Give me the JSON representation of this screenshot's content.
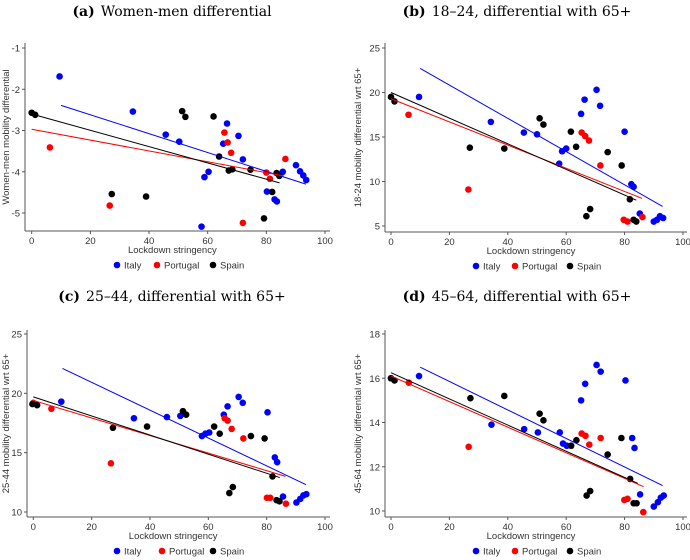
{
  "chart_data": [
    {
      "type": "scatter",
      "label": "(a)",
      "title": "Women-men differential",
      "xlabel": "Lockdown stringency",
      "ylabel": "Women-men mobility differential",
      "xlim": [
        0,
        100
      ],
      "xticks": [
        0,
        20,
        40,
        60,
        80,
        100
      ],
      "ylim": [
        -5,
        -1
      ],
      "yticks": [
        -5,
        -4,
        -3,
        -2,
        -1
      ],
      "legend_position": "bottom",
      "series": [
        {
          "name": "Italy",
          "color": "#0000ff",
          "points": [
            [
              9.5,
              -1.69
            ],
            [
              34.5,
              -2.54
            ],
            [
              45.7,
              -3.1
            ],
            [
              50.3,
              -3.27
            ],
            [
              57.9,
              -5.33
            ],
            [
              58.9,
              -4.13
            ],
            [
              60.3,
              -4.0
            ],
            [
              65.3,
              -3.32
            ],
            [
              66.6,
              -2.83
            ],
            [
              70.5,
              -3.13
            ],
            [
              72,
              -3.7
            ],
            [
              80.2,
              -4.48
            ],
            [
              82.8,
              -4.67
            ],
            [
              83.6,
              -4.72
            ],
            [
              85.6,
              -4.0
            ],
            [
              90.1,
              -3.84
            ],
            [
              91.5,
              -3.99
            ],
            [
              92.6,
              -4.09
            ],
            [
              93.6,
              -4.2
            ]
          ],
          "fit": [
            [
              10,
              -2.39
            ],
            [
              93.5,
              -4.3
            ]
          ]
        },
        {
          "name": "Portugal",
          "color": "#ff0000",
          "points": [
            [
              6.2,
              -3.41
            ],
            [
              26.6,
              -4.82
            ],
            [
              65.7,
              -3.05
            ],
            [
              66.8,
              -3.29
            ],
            [
              68,
              -3.54
            ],
            [
              72,
              -5.24
            ],
            [
              80,
              -4.02
            ],
            [
              81.2,
              -4.17
            ],
            [
              86.5,
              -3.69
            ]
          ],
          "fit": [
            [
              0,
              -2.97
            ],
            [
              86,
              -4.1
            ]
          ]
        },
        {
          "name": "Spain",
          "color": "#000000",
          "points": [
            [
              0,
              -2.57
            ],
            [
              1.2,
              -2.62
            ],
            [
              27.3,
              -4.54
            ],
            [
              39,
              -4.6
            ],
            [
              51.3,
              -2.53
            ],
            [
              52.4,
              -2.67
            ],
            [
              62,
              -2.66
            ],
            [
              63.9,
              -3.63
            ],
            [
              67.2,
              -3.97
            ],
            [
              68.4,
              -3.94
            ],
            [
              74.6,
              -3.95
            ],
            [
              79.2,
              -5.13
            ],
            [
              82,
              -4.49
            ],
            [
              83.5,
              -4.03
            ],
            [
              84.4,
              -4.1
            ]
          ],
          "fit": [
            [
              0,
              -2.6
            ],
            [
              84.5,
              -4.27
            ]
          ]
        }
      ]
    },
    {
      "type": "scatter",
      "label": "(b)",
      "title": "18–24, differential with 65+",
      "xlabel": "Lockdown stringency",
      "ylabel": "18-24 mobility differential wrt 65+",
      "xlim": [
        0,
        100
      ],
      "xticks": [
        0,
        20,
        40,
        60,
        80,
        100
      ],
      "ylim": [
        5,
        25
      ],
      "yticks": [
        5,
        10,
        15,
        20,
        25
      ],
      "legend_position": "bottom",
      "series": [
        {
          "name": "Italy",
          "color": "#0000ff",
          "points": [
            [
              9.6,
              19.5
            ],
            [
              34.2,
              16.7
            ],
            [
              45.5,
              15.5
            ],
            [
              50,
              15.3
            ],
            [
              57.6,
              12.0
            ],
            [
              58.6,
              13.4
            ],
            [
              60,
              13.7
            ],
            [
              65.1,
              17.6
            ],
            [
              66.3,
              19.2
            ],
            [
              70.4,
              20.3
            ],
            [
              71.6,
              18.5
            ],
            [
              80,
              15.6
            ],
            [
              82.3,
              9.7
            ],
            [
              83.1,
              9.4
            ],
            [
              85.2,
              6.4
            ],
            [
              90,
              5.5
            ],
            [
              91.1,
              5.7
            ],
            [
              92.1,
              6.1
            ],
            [
              93.2,
              5.9
            ]
          ],
          "fit": [
            [
              10,
              22.7
            ],
            [
              93,
              7.2
            ]
          ]
        },
        {
          "name": "Portugal",
          "color": "#ff0000",
          "points": [
            [
              6,
              17.5
            ],
            [
              26.5,
              9.1
            ],
            [
              65.3,
              15.5
            ],
            [
              66.5,
              15.1
            ],
            [
              67.8,
              14.6
            ],
            [
              71.7,
              11.8
            ],
            [
              79.7,
              5.7
            ],
            [
              81,
              5.5
            ],
            [
              86.1,
              6.0
            ]
          ],
          "fit": [
            [
              0,
              19.3
            ],
            [
              86,
              8.1
            ]
          ]
        },
        {
          "name": "Spain",
          "color": "#000000",
          "points": [
            [
              0,
              19.5
            ],
            [
              1.2,
              19
            ],
            [
              27,
              13.8
            ],
            [
              38.8,
              13.7
            ],
            [
              50.9,
              17.1
            ],
            [
              52.2,
              16.4
            ],
            [
              61.6,
              15.6
            ],
            [
              63.4,
              13.9
            ],
            [
              66.9,
              6.1
            ],
            [
              68.2,
              6.9
            ],
            [
              74.2,
              13.3
            ],
            [
              79,
              11.8
            ],
            [
              81.8,
              8.0
            ],
            [
              83.1,
              5.7
            ],
            [
              84,
              5.5
            ]
          ],
          "fit": [
            [
              0,
              20.0
            ],
            [
              84,
              7.9
            ]
          ]
        }
      ]
    },
    {
      "type": "scatter",
      "label": "(c)",
      "title": "25–44, differential with 65+",
      "xlabel": "Lockdown stringency",
      "ylabel": "25-44 mobility differential wrt 65+",
      "xlim": [
        0,
        100
      ],
      "xticks": [
        0,
        20,
        40,
        60,
        80,
        100
      ],
      "ylim": [
        10,
        25
      ],
      "yticks": [
        10,
        15,
        20,
        25
      ],
      "legend_position": "bottom",
      "series": [
        {
          "name": "Italy",
          "color": "#0000ff",
          "points": [
            [
              9.6,
              19.3
            ],
            [
              34.5,
              17.9
            ],
            [
              45.8,
              18.0
            ],
            [
              50.4,
              18.1
            ],
            [
              57.8,
              16.4
            ],
            [
              59,
              16.6
            ],
            [
              60.3,
              16.7
            ],
            [
              65.3,
              18.2
            ],
            [
              66.6,
              18.9
            ],
            [
              70.4,
              19.7
            ],
            [
              71.8,
              19.2
            ],
            [
              80.3,
              18.4
            ],
            [
              82.8,
              14.6
            ],
            [
              83.6,
              14.2
            ],
            [
              85.6,
              11.3
            ],
            [
              90.2,
              10.8
            ],
            [
              91.5,
              11.1
            ],
            [
              92.6,
              11.4
            ],
            [
              93.6,
              11.5
            ]
          ],
          "fit": [
            [
              10,
              22.1
            ],
            [
              93.5,
              12.3
            ]
          ]
        },
        {
          "name": "Portugal",
          "color": "#ff0000",
          "points": [
            [
              0,
              19.2
            ],
            [
              6.2,
              18.7
            ],
            [
              26.6,
              14.1
            ],
            [
              65.6,
              17.9
            ],
            [
              66.6,
              17.7
            ],
            [
              68,
              17.0
            ],
            [
              72,
              16.2
            ],
            [
              80.1,
              11.2
            ],
            [
              81.2,
              11.2
            ],
            [
              86.6,
              10.7
            ]
          ],
          "fit": [
            [
              0,
              19.4
            ],
            [
              86.5,
              13.0
            ]
          ]
        },
        {
          "name": "Spain",
          "color": "#000000",
          "points": [
            [
              -0.3,
              19.1
            ],
            [
              1.3,
              19.0
            ],
            [
              27.3,
              17.1
            ],
            [
              39,
              17.2
            ],
            [
              51.3,
              18.5
            ],
            [
              52.4,
              18.2
            ],
            [
              62,
              17.2
            ],
            [
              63.9,
              16.6
            ],
            [
              67.2,
              11.6
            ],
            [
              68.4,
              12.1
            ],
            [
              74.6,
              16.4
            ],
            [
              79.3,
              16.2
            ],
            [
              82,
              13.0
            ],
            [
              83.4,
              11.0
            ],
            [
              84.4,
              10.9
            ]
          ],
          "fit": [
            [
              0,
              19.7
            ],
            [
              84.5,
              12.9
            ]
          ]
        }
      ]
    },
    {
      "type": "scatter",
      "label": "(d)",
      "title": "45–64, differential with 65+",
      "xlabel": "Lockdown stringency",
      "ylabel": "45-64 mobility differential wrt 65+",
      "xlim": [
        0,
        100
      ],
      "xticks": [
        0,
        20,
        40,
        60,
        80,
        100
      ],
      "ylim": [
        10,
        18
      ],
      "yticks": [
        10,
        12,
        14,
        16,
        18
      ],
      "legend_position": "bottom",
      "series": [
        {
          "name": "Italy",
          "color": "#0000ff",
          "points": [
            [
              9.6,
              16.1
            ],
            [
              34.4,
              13.9
            ],
            [
              45.6,
              13.7
            ],
            [
              50.3,
              13.55
            ],
            [
              57.8,
              13.55
            ],
            [
              58.9,
              13.05
            ],
            [
              60.2,
              12.95
            ],
            [
              65.1,
              15.0
            ],
            [
              66.5,
              15.75
            ],
            [
              70.4,
              16.6
            ],
            [
              71.8,
              16.3
            ],
            [
              80.3,
              15.9
            ],
            [
              82.6,
              13.3
            ],
            [
              83.4,
              12.85
            ],
            [
              85.3,
              10.75
            ],
            [
              90,
              10.2
            ],
            [
              91.4,
              10.4
            ],
            [
              92.4,
              10.6
            ],
            [
              93.4,
              10.7
            ]
          ],
          "fit": [
            [
              10,
              16.5
            ],
            [
              93,
              11.15
            ]
          ]
        },
        {
          "name": "Portugal",
          "color": "#ff0000",
          "points": [
            [
              0,
              16.0
            ],
            [
              6.1,
              15.8
            ],
            [
              26.6,
              12.9
            ],
            [
              65.3,
              13.5
            ],
            [
              66.6,
              13.4
            ],
            [
              67.9,
              13.0
            ],
            [
              71.8,
              13.3
            ],
            [
              79.9,
              10.5
            ],
            [
              81,
              10.55
            ],
            [
              86.4,
              9.95
            ]
          ],
          "fit": [
            [
              0,
              16.1
            ],
            [
              86.5,
              11.1
            ]
          ]
        },
        {
          "name": "Spain",
          "color": "#000000",
          "points": [
            [
              0,
              16.0
            ],
            [
              1.2,
              15.9
            ],
            [
              27.2,
              15.1
            ],
            [
              38.8,
              15.2
            ],
            [
              50.9,
              14.4
            ],
            [
              52.2,
              14.1
            ],
            [
              61.7,
              12.95
            ],
            [
              63.5,
              13.2
            ],
            [
              67,
              10.7
            ],
            [
              68.2,
              10.9
            ],
            [
              74.2,
              12.55
            ],
            [
              78.9,
              13.3
            ],
            [
              81.9,
              11.45
            ],
            [
              83.1,
              10.35
            ],
            [
              84.1,
              10.35
            ]
          ],
          "fit": [
            [
              0,
              16.25
            ],
            [
              84.5,
              11.25
            ]
          ]
        }
      ]
    }
  ]
}
